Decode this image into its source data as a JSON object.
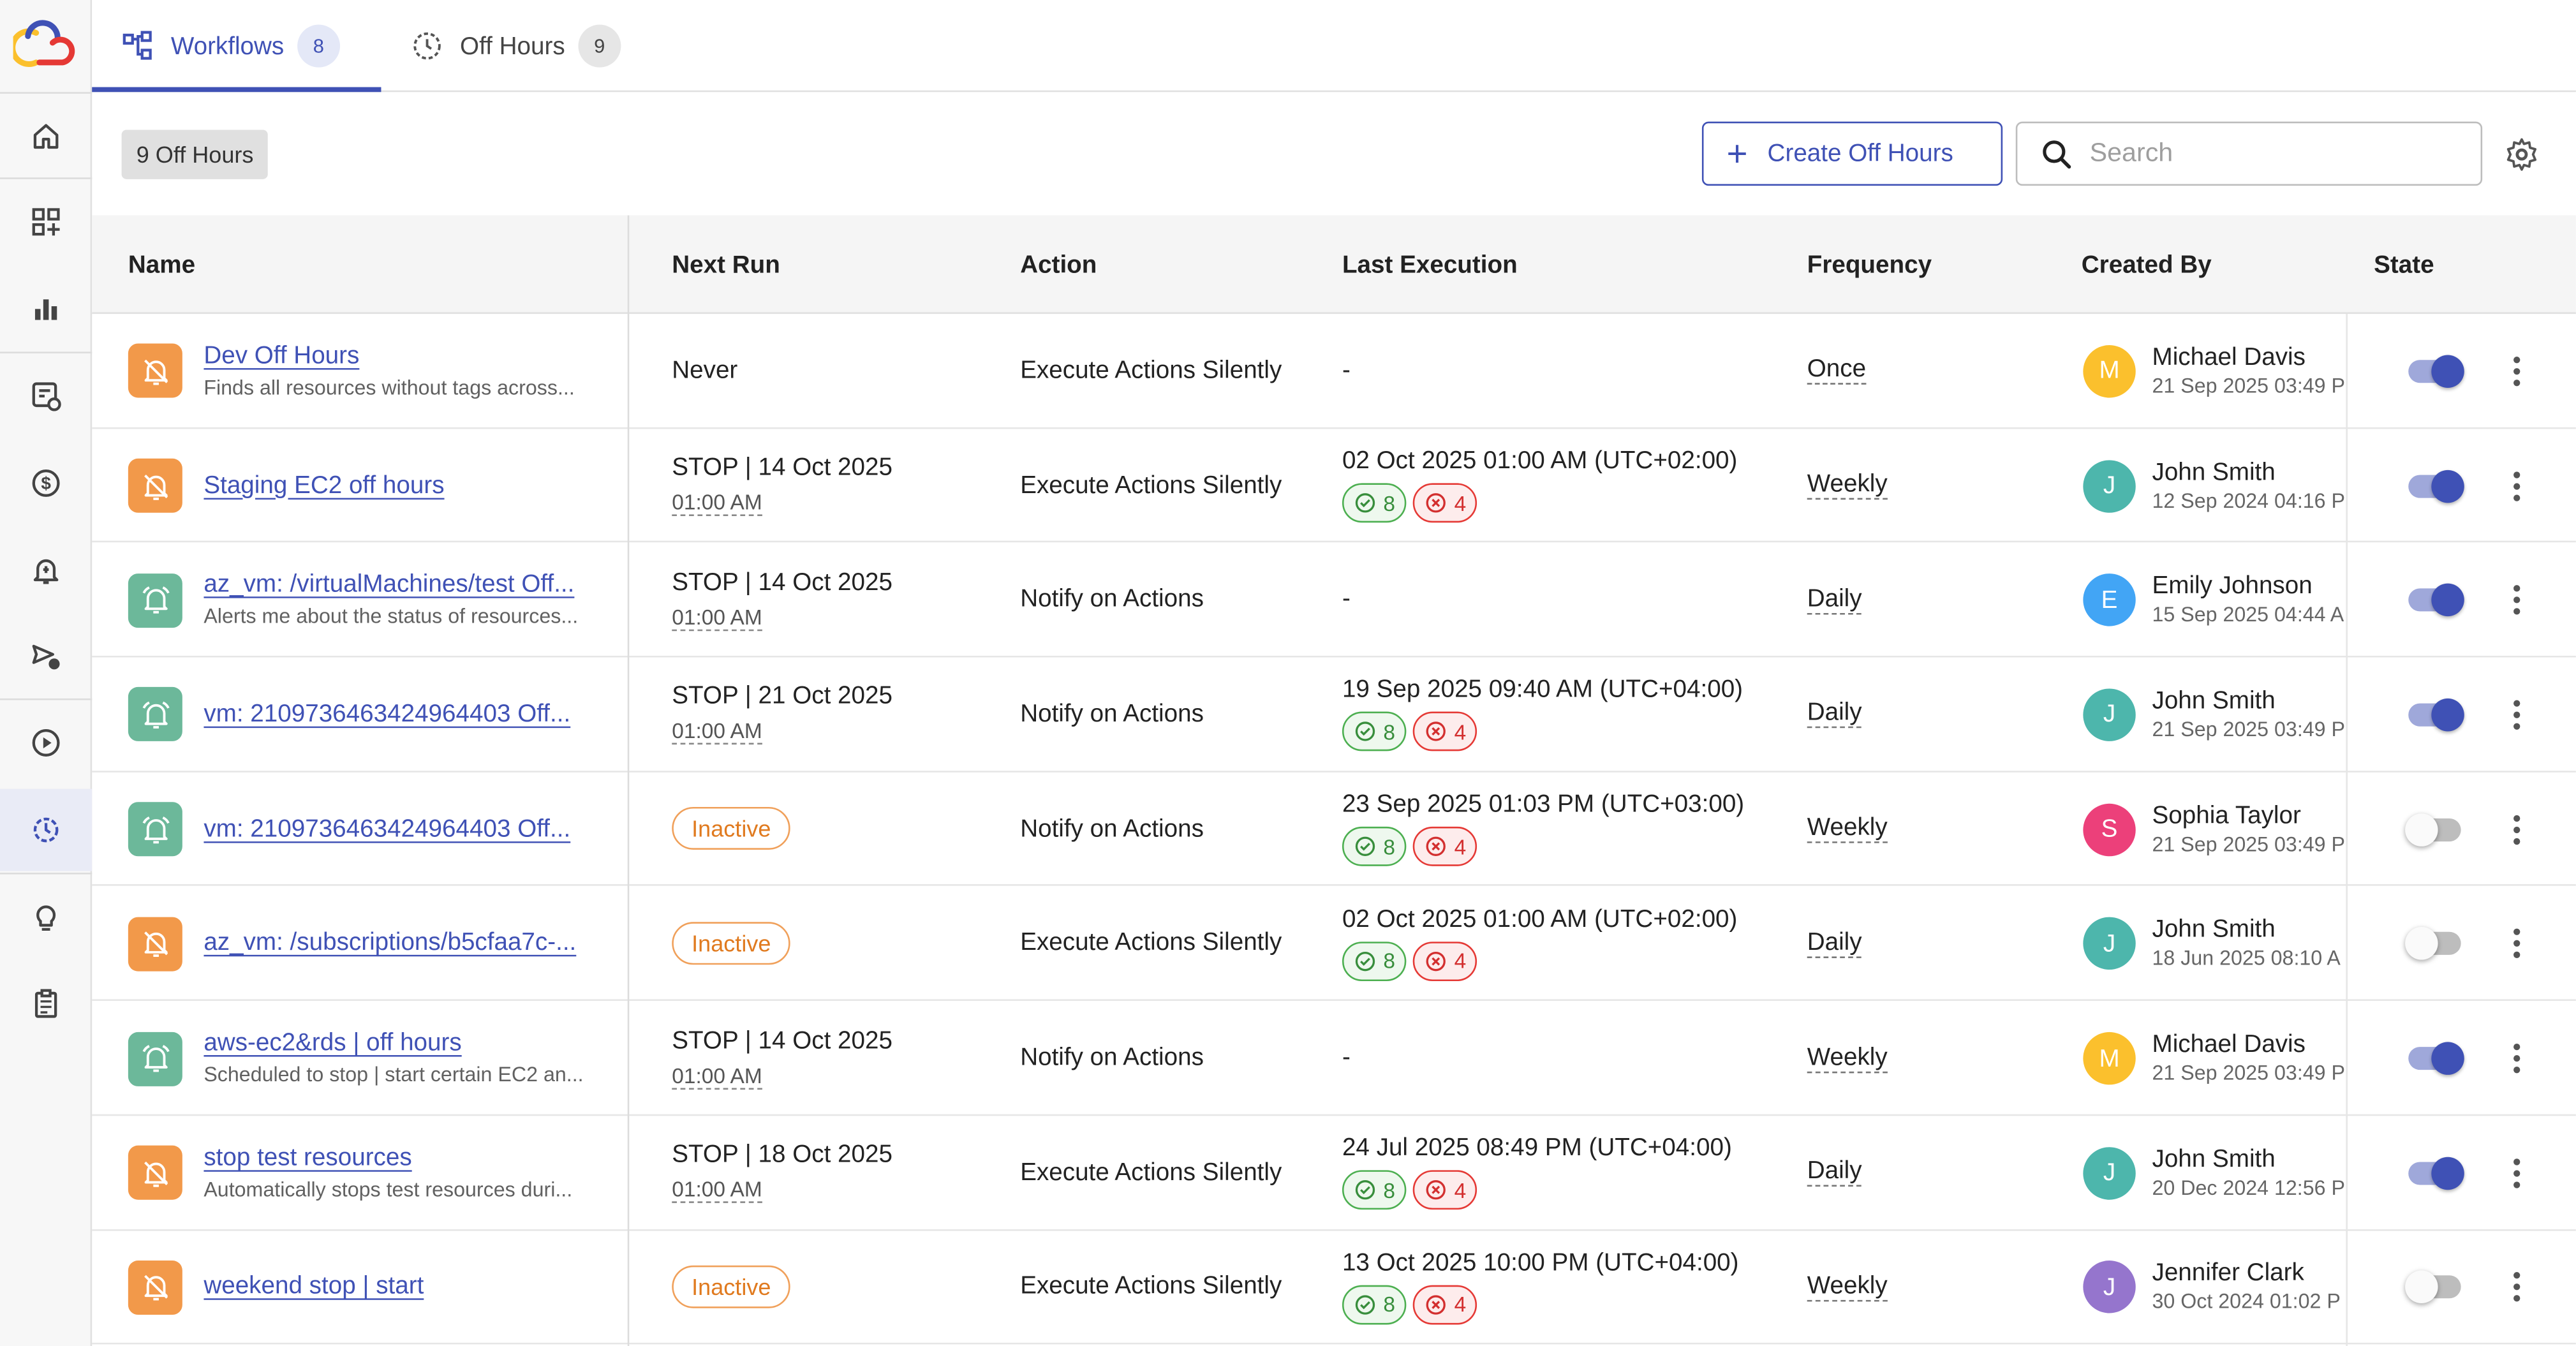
{
  "sidebar": {
    "logo": "cloud-logo",
    "items": [
      {
        "icon": "home-icon"
      },
      {
        "icon": "dashboard-add-icon"
      },
      {
        "icon": "bar-chart-icon"
      },
      {
        "icon": "resource-link-icon"
      },
      {
        "icon": "dollar-icon"
      },
      {
        "icon": "alert-bell-icon"
      },
      {
        "icon": "scheduled-send-icon"
      },
      {
        "icon": "play-icon"
      },
      {
        "icon": "off-hours-icon",
        "active": true
      },
      {
        "icon": "lightbulb-icon"
      },
      {
        "icon": "clipboard-icon"
      }
    ]
  },
  "tabs": [
    {
      "label": "Workflows",
      "count": "8",
      "active": true
    },
    {
      "label": "Off Hours",
      "count": "9",
      "active": false
    }
  ],
  "toolbar": {
    "count_label": "9 Off Hours",
    "create_label": "Create Off Hours",
    "search_placeholder": "Search"
  },
  "columns": [
    "Name",
    "Next Run",
    "Action",
    "Last Execution",
    "Frequency",
    "Created By",
    "State"
  ],
  "rows": [
    {
      "icon_type": "orange",
      "name": "Dev Off Hours",
      "desc": "Finds all resources without tags across...",
      "next_run": "Never",
      "next_time": "",
      "inactive": false,
      "action": "Execute Actions Silently",
      "last_exec": "-",
      "success": "",
      "fail": "",
      "frequency": "Once",
      "creator": "Michael Davis",
      "initial": "M",
      "avatar_color": "#fbc02d",
      "created": "21 Sep 2025 03:49 P",
      "state_on": true
    },
    {
      "icon_type": "orange",
      "name": "Staging EC2 off hours",
      "desc": "",
      "next_run": "STOP | 14 Oct 2025",
      "next_time": "01:00 AM",
      "inactive": false,
      "action": "Execute Actions Silently",
      "last_exec": "02 Oct 2025 01:00 AM (UTC+02:00)",
      "success": "8",
      "fail": "4",
      "frequency": "Weekly",
      "creator": "John Smith",
      "initial": "J",
      "avatar_color": "#4db6ac",
      "created": "12 Sep 2024 04:16 P",
      "state_on": true
    },
    {
      "icon_type": "green",
      "name": "az_vm: /virtualMachines/test Off...",
      "desc": "Alerts me about the status of resources...",
      "next_run": "STOP | 14 Oct 2025",
      "next_time": "01:00 AM",
      "inactive": false,
      "action": "Notify on Actions",
      "last_exec": "-",
      "success": "",
      "fail": "",
      "frequency": "Daily",
      "creator": "Emily Johnson",
      "initial": "E",
      "avatar_color": "#42a5f5",
      "created": "15 Sep 2025 04:44 A",
      "state_on": true
    },
    {
      "icon_type": "green",
      "name": "vm: 2109736463424964403 Off...",
      "desc": "",
      "next_run": "STOP | 21 Oct 2025",
      "next_time": "01:00 AM",
      "inactive": false,
      "action": "Notify on Actions",
      "last_exec": "19 Sep 2025 09:40 AM (UTC+04:00)",
      "success": "8",
      "fail": "4",
      "frequency": "Daily",
      "creator": "John Smith",
      "initial": "J",
      "avatar_color": "#4db6ac",
      "created": "21 Sep 2025 03:49 P",
      "state_on": true
    },
    {
      "icon_type": "green",
      "name": "vm: 2109736463424964403 Off...",
      "desc": "",
      "next_run": "Inactive",
      "next_time": "",
      "inactive": true,
      "action": "Notify on Actions",
      "last_exec": "23 Sep 2025 01:03 PM (UTC+03:00)",
      "success": "8",
      "fail": "4",
      "frequency": "Weekly",
      "creator": "Sophia Taylor",
      "initial": "S",
      "avatar_color": "#ec407a",
      "created": "21 Sep 2025 03:49 P",
      "state_on": false
    },
    {
      "icon_type": "orange",
      "name": "az_vm: /subscriptions/b5cfaa7c-...",
      "desc": "",
      "next_run": "Inactive",
      "next_time": "",
      "inactive": true,
      "action": "Execute Actions Silently",
      "last_exec": "02 Oct 2025 01:00 AM (UTC+02:00)",
      "success": "8",
      "fail": "4",
      "frequency": "Daily",
      "creator": "John Smith",
      "initial": "J",
      "avatar_color": "#4db6ac",
      "created": "18 Jun 2025 08:10 A",
      "state_on": false
    },
    {
      "icon_type": "green",
      "name": "aws-ec2&rds | off hours",
      "desc": "Scheduled to stop | start certain EC2 an...",
      "next_run": "STOP | 14 Oct 2025",
      "next_time": "01:00 AM",
      "inactive": false,
      "action": "Notify on Actions",
      "last_exec": "-",
      "success": "",
      "fail": "",
      "frequency": "Weekly",
      "creator": "Michael Davis",
      "initial": "M",
      "avatar_color": "#fbc02d",
      "created": "21 Sep 2025 03:49 P",
      "state_on": true
    },
    {
      "icon_type": "orange",
      "name": "stop test resources",
      "desc": "Automatically stops test resources duri...",
      "next_run": "STOP | 18 Oct 2025",
      "next_time": "01:00 AM",
      "inactive": false,
      "action": "Execute Actions Silently",
      "last_exec": "24 Jul 2025 08:49 PM (UTC+04:00)",
      "success": "8",
      "fail": "4",
      "frequency": "Daily",
      "creator": "John Smith",
      "initial": "J",
      "avatar_color": "#4db6ac",
      "created": "20 Dec 2024 12:56 P",
      "state_on": true
    },
    {
      "icon_type": "orange",
      "name": "weekend stop | start",
      "desc": "",
      "next_run": "Inactive",
      "next_time": "",
      "inactive": true,
      "action": "Execute Actions Silently",
      "last_exec": "13 Oct 2025 10:00 PM (UTC+04:00)",
      "success": "8",
      "fail": "4",
      "frequency": "Weekly",
      "creator": "Jennifer Clark",
      "initial": "J",
      "avatar_color": "#9575cd",
      "created": "30 Oct 2024 01:02 P",
      "state_on": false
    }
  ]
}
